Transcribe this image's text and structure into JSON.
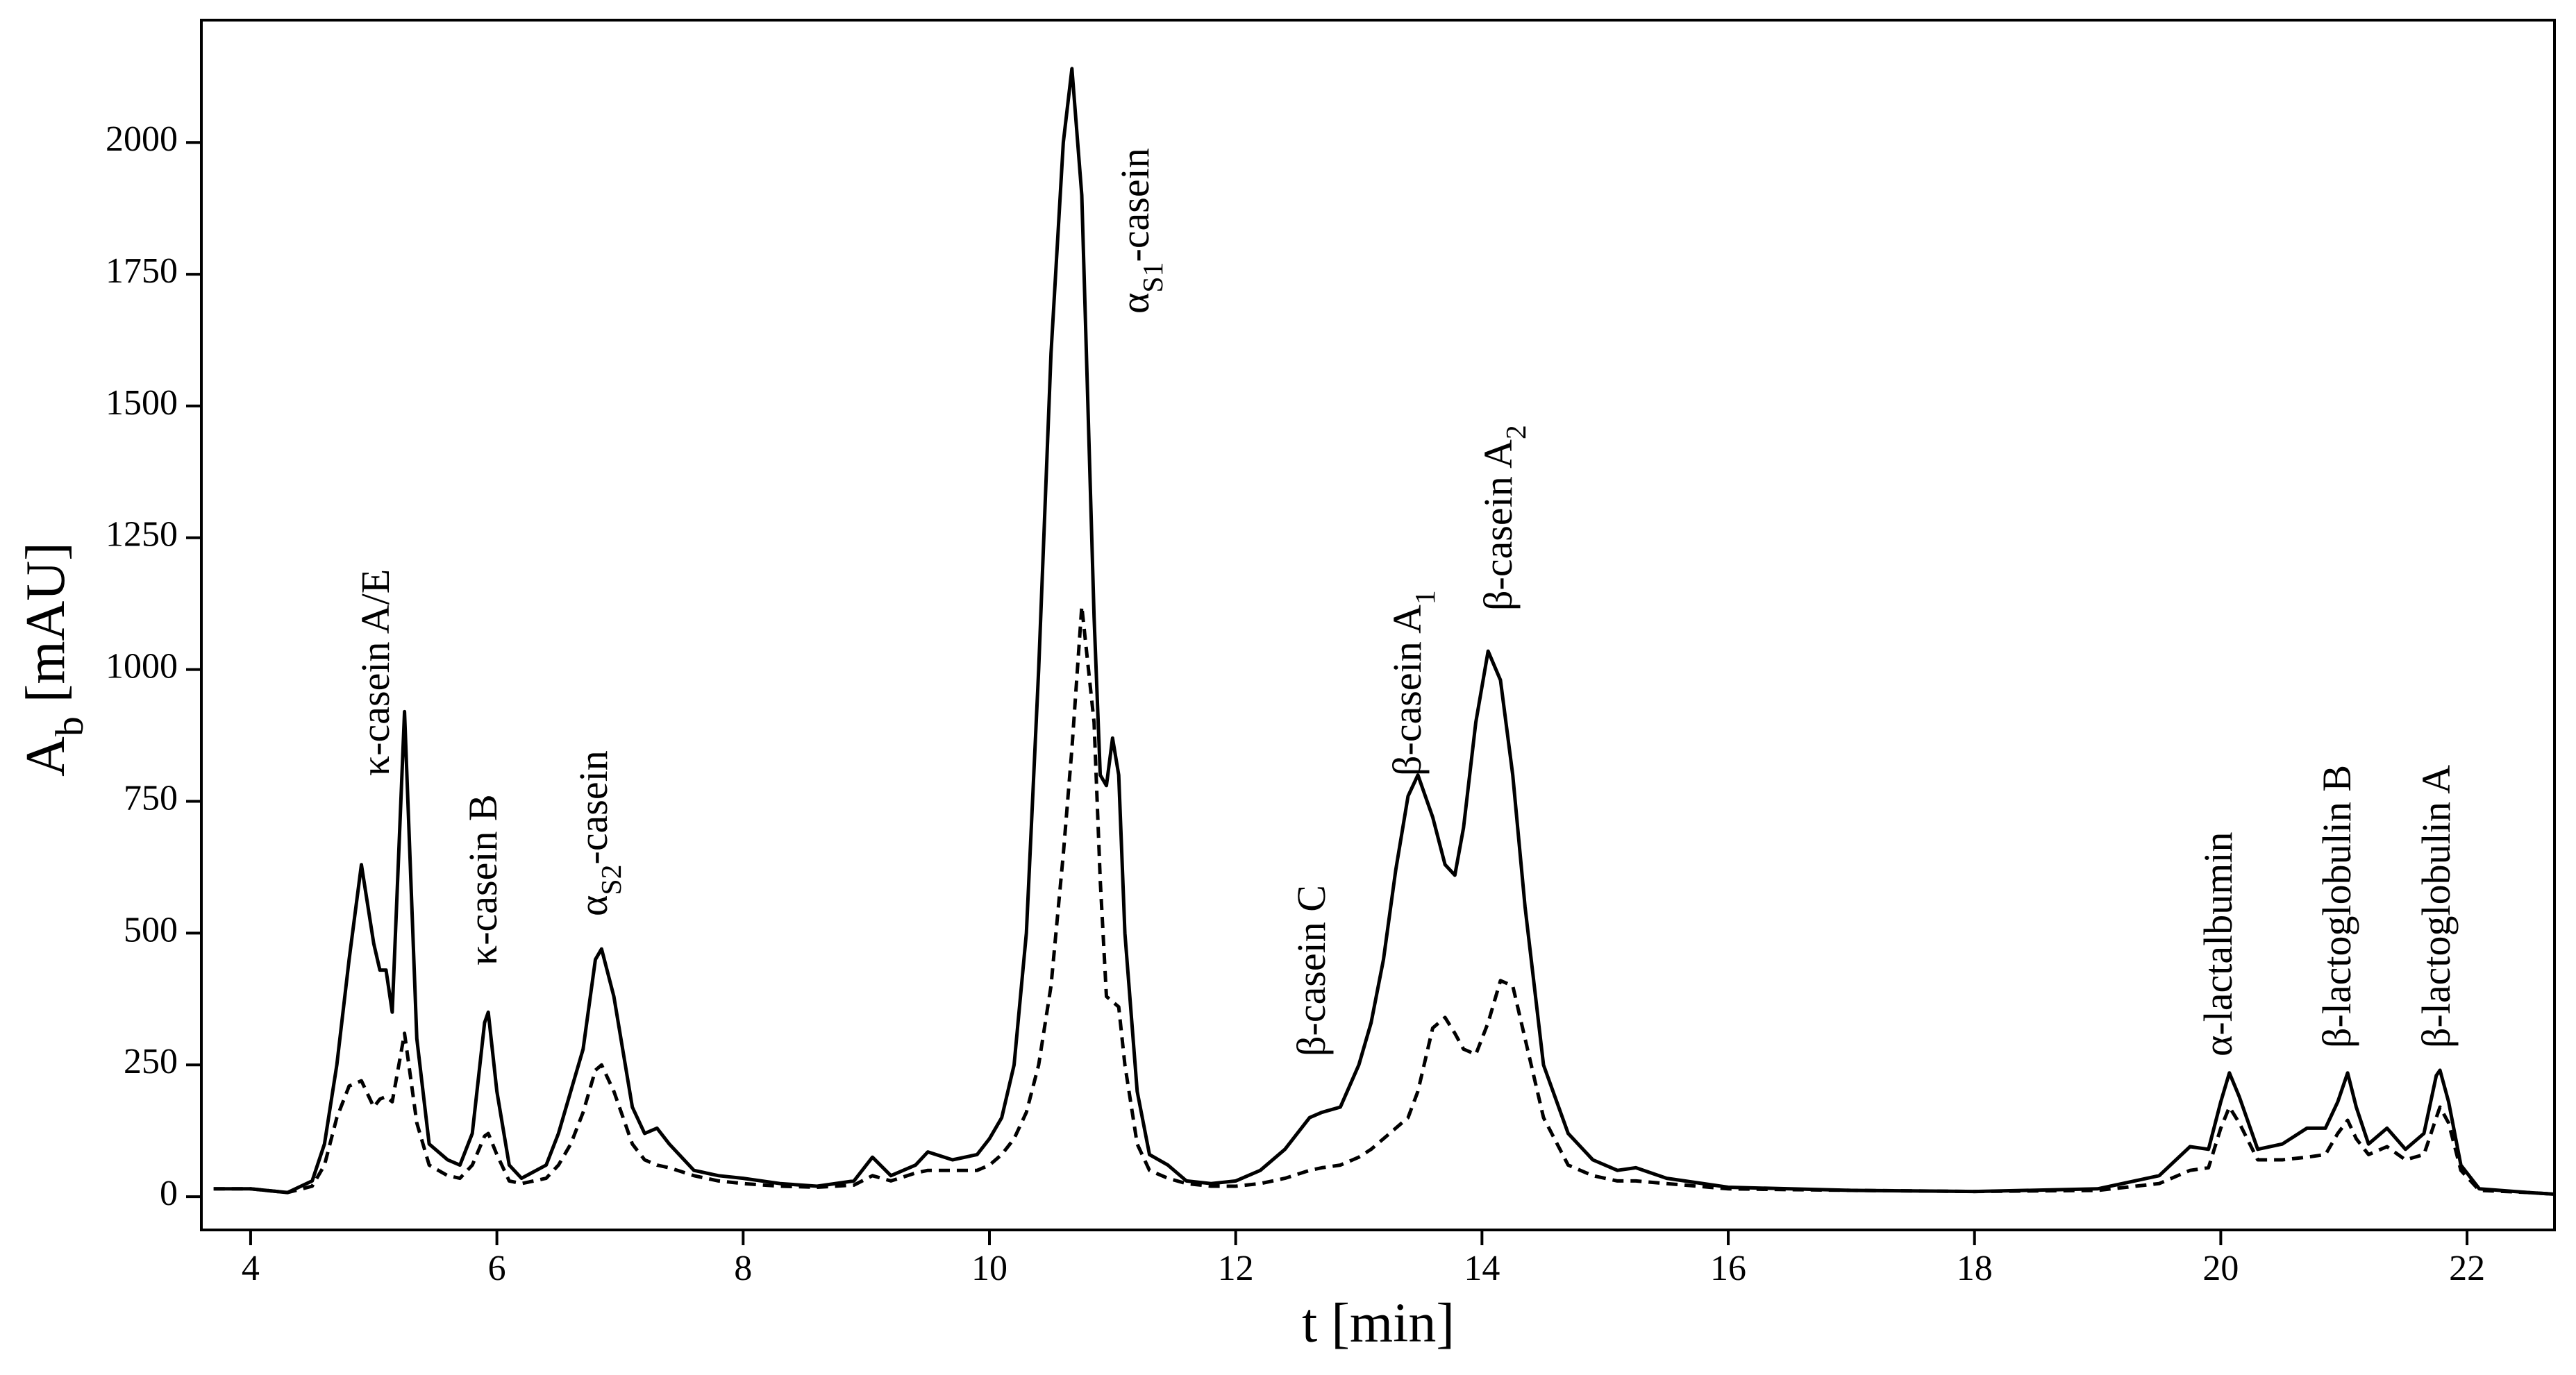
{
  "chart_data": {
    "type": "line",
    "x_label": "t [min]",
    "y_label": [
      "A",
      "b",
      " [mAU]"
    ],
    "xlim": [
      3.6,
      22.71
    ],
    "ylim": [
      -63,
      2232
    ],
    "xticks": [
      4,
      6,
      8,
      10,
      12,
      14,
      16,
      18,
      20,
      22
    ],
    "yticks": [
      0,
      250,
      500,
      750,
      1000,
      1250,
      1500,
      1750,
      2000
    ],
    "x": [
      3.7,
      4.0,
      4.3,
      4.5,
      4.6,
      4.7,
      4.8,
      4.9,
      5.0,
      5.05,
      5.1,
      5.15,
      5.25,
      5.35,
      5.45,
      5.6,
      5.7,
      5.8,
      5.9,
      5.93,
      6.0,
      6.1,
      6.2,
      6.4,
      6.5,
      6.6,
      6.7,
      6.8,
      6.85,
      6.95,
      7.1,
      7.2,
      7.3,
      7.4,
      7.6,
      7.8,
      8.0,
      8.3,
      8.6,
      8.9,
      9.05,
      9.2,
      9.4,
      9.5,
      9.7,
      9.9,
      10.0,
      10.1,
      10.2,
      10.3,
      10.4,
      10.5,
      10.6,
      10.67,
      10.75,
      10.85,
      10.9,
      10.95,
      11.0,
      11.05,
      11.1,
      11.2,
      11.3,
      11.45,
      11.6,
      11.8,
      12.0,
      12.2,
      12.4,
      12.6,
      12.7,
      12.85,
      13.0,
      13.1,
      13.2,
      13.3,
      13.4,
      13.48,
      13.6,
      13.7,
      13.78,
      13.85,
      13.95,
      14.05,
      14.15,
      14.25,
      14.35,
      14.5,
      14.7,
      14.9,
      15.1,
      15.25,
      15.5,
      16,
      17,
      18,
      19,
      19.5,
      19.75,
      19.9,
      20.0,
      20.07,
      20.15,
      20.3,
      20.5,
      20.7,
      20.85,
      20.95,
      21.03,
      21.1,
      21.2,
      21.35,
      21.5,
      21.65,
      21.75,
      21.78,
      21.85,
      21.95,
      22.1,
      22.5,
      22.7
    ],
    "series": [
      {
        "color": "#000000",
        "dash": "solid",
        "values": [
          15,
          15,
          8,
          30,
          100,
          250,
          450,
          630,
          480,
          430,
          430,
          350,
          920,
          300,
          100,
          70,
          60,
          120,
          330,
          350,
          200,
          60,
          35,
          60,
          120,
          200,
          280,
          450,
          470,
          380,
          170,
          120,
          130,
          100,
          50,
          40,
          35,
          25,
          20,
          30,
          75,
          40,
          60,
          85,
          70,
          80,
          110,
          150,
          250,
          500,
          1000,
          1600,
          2000,
          2140,
          1900,
          1100,
          800,
          780,
          870,
          800,
          500,
          200,
          80,
          60,
          30,
          25,
          30,
          50,
          90,
          150,
          160,
          170,
          250,
          330,
          450,
          620,
          760,
          800,
          720,
          630,
          610,
          700,
          900,
          1035,
          980,
          800,
          550,
          250,
          120,
          70,
          50,
          55,
          35,
          18,
          12,
          10,
          15,
          40,
          95,
          90,
          180,
          235,
          190,
          90,
          100,
          130,
          130,
          180,
          235,
          170,
          100,
          130,
          90,
          120,
          230,
          240,
          180,
          60,
          15,
          8,
          5
        ]
      },
      {
        "color": "#000000",
        "dash": "dashed",
        "values": [
          15,
          15,
          8,
          20,
          60,
          150,
          210,
          220,
          170,
          185,
          190,
          180,
          310,
          140,
          60,
          40,
          35,
          60,
          115,
          120,
          80,
          30,
          25,
          35,
          60,
          100,
          160,
          240,
          250,
          200,
          100,
          70,
          60,
          55,
          40,
          30,
          25,
          20,
          18,
          22,
          40,
          30,
          45,
          50,
          50,
          50,
          60,
          80,
          110,
          160,
          250,
          400,
          650,
          850,
          1120,
          900,
          600,
          380,
          370,
          360,
          250,
          100,
          50,
          35,
          25,
          20,
          20,
          25,
          35,
          50,
          55,
          60,
          75,
          90,
          110,
          130,
          150,
          200,
          320,
          340,
          310,
          280,
          270,
          330,
          410,
          400,
          300,
          150,
          60,
          40,
          30,
          30,
          25,
          15,
          12,
          10,
          12,
          25,
          50,
          55,
          130,
          170,
          140,
          70,
          70,
          75,
          80,
          120,
          145,
          110,
          80,
          95,
          70,
          80,
          150,
          170,
          140,
          50,
          12,
          8,
          5
        ]
      }
    ],
    "annotations": [
      {
        "text": [
          "κ-casein A/E"
        ]
      },
      {
        "text": [
          "κ-casein B"
        ]
      },
      {
        "text": [
          "α",
          "S2",
          "-casein"
        ]
      },
      {
        "text": [
          "α",
          "S1",
          "-casein"
        ]
      },
      {
        "text": [
          "β-casein C"
        ]
      },
      {
        "text": [
          "β-casein A",
          "1"
        ]
      },
      {
        "text": [
          "β-casein A",
          "2"
        ]
      },
      {
        "text": [
          "α-lactalbumin"
        ]
      },
      {
        "text": [
          "β-lactoglobulin B"
        ]
      },
      {
        "text": [
          "β-lactoglobulin A"
        ]
      }
    ]
  }
}
